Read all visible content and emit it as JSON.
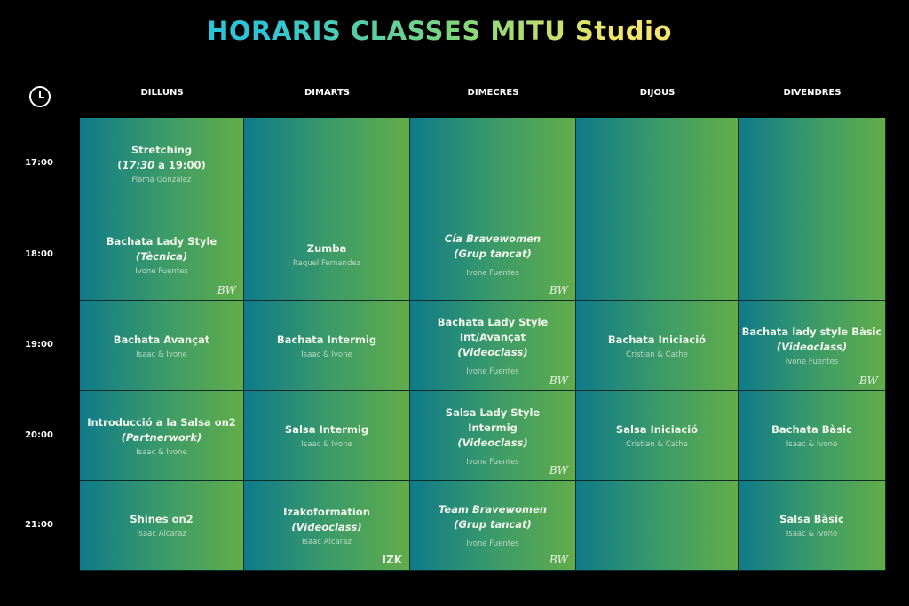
{
  "title": "HORARIS CLASSES MITU Studio",
  "days": [
    "DILLUNS",
    "DIMARTS",
    "DIMECRES",
    "DIJOUS",
    "DIVENDRES"
  ],
  "times": [
    "17:00",
    "18:00",
    "19:00",
    "20:00",
    "21:00"
  ],
  "colors": {
    "cell_start": "#0f7a8a",
    "cell_end": "#62ad4a",
    "background": "#000000"
  },
  "cells": [
    [
      {
        "lines": [
          [
            {
              "t": "Stretching"
            }
          ],
          [
            {
              "t": "("
            },
            {
              "t": "17:30",
              "i": true
            },
            {
              "t": " a 19:00)"
            }
          ]
        ],
        "teacher": "Fiama Gonzalez",
        "badge": ""
      },
      {
        "lines": [
          [
            {
              "t": "Bachata Lady Style"
            }
          ],
          [
            {
              "t": "(Tècnica)",
              "i": true
            }
          ]
        ],
        "teacher": "Ivone Fuentes",
        "badge": "BW"
      },
      {
        "lines": [
          [
            {
              "t": "Bachata Avançat"
            }
          ]
        ],
        "teacher": "Isaac & Ivone",
        "badge": ""
      },
      {
        "lines": [
          [
            {
              "t": "Introducció a la Salsa on2"
            }
          ],
          [
            {
              "t": "(Partnerwork)",
              "i": true
            }
          ]
        ],
        "teacher": "Isaac & Ivone",
        "badge": ""
      },
      {
        "lines": [
          [
            {
              "t": "Shines on2"
            }
          ]
        ],
        "teacher": "Isaac Alcaraz",
        "badge": ""
      }
    ],
    [
      {
        "lines": [],
        "teacher": "",
        "badge": ""
      },
      {
        "lines": [
          [
            {
              "t": "Zumba"
            }
          ]
        ],
        "teacher": "Raquel Fernandez",
        "badge": ""
      },
      {
        "lines": [
          [
            {
              "t": "Bachata Intermig"
            }
          ]
        ],
        "teacher": "Isaac & Ivone",
        "badge": ""
      },
      {
        "lines": [
          [
            {
              "t": "Salsa Intermig"
            }
          ]
        ],
        "teacher": "Isaac & Ivone",
        "badge": ""
      },
      {
        "lines": [
          [
            {
              "t": "Izakoformation"
            }
          ],
          [
            {
              "t": "(Videoclass)",
              "i": true
            }
          ]
        ],
        "teacher": "Isaac Alcaraz",
        "badge": "IZK"
      }
    ],
    [
      {
        "lines": [],
        "teacher": "",
        "badge": ""
      },
      {
        "lines": [
          [
            {
              "t": "Cía Bravewomen",
              "i": true
            }
          ],
          [
            {
              "t": "(Grup tancat)",
              "i": true
            }
          ]
        ],
        "teacher": "Ivone Fuentes",
        "badge": "BW"
      },
      {
        "lines": [
          [
            {
              "t": "Bachata Lady Style"
            }
          ],
          [
            {
              "t": "Int/Avançat"
            }
          ],
          [
            {
              "t": "(Videoclass)",
              "i": true
            }
          ]
        ],
        "teacher": "Ivone Fuentes",
        "badge": "BW"
      },
      {
        "lines": [
          [
            {
              "t": "Salsa Lady Style"
            }
          ],
          [
            {
              "t": "Intermig"
            }
          ],
          [
            {
              "t": "(Videoclass)",
              "i": true
            }
          ]
        ],
        "teacher": "Ivone Fuentes",
        "badge": "BW"
      },
      {
        "lines": [
          [
            {
              "t": "Team Bravewomen",
              "i": true
            }
          ],
          [
            {
              "t": "(Grup tancat)",
              "i": true
            }
          ]
        ],
        "teacher": "Ivone Fuentes",
        "badge": "BW"
      }
    ],
    [
      {
        "lines": [],
        "teacher": "",
        "badge": ""
      },
      {
        "lines": [],
        "teacher": "",
        "badge": ""
      },
      {
        "lines": [
          [
            {
              "t": "Bachata Iniciació"
            }
          ]
        ],
        "teacher": "Cristian & Cathe",
        "badge": ""
      },
      {
        "lines": [
          [
            {
              "t": "Salsa Iniciació"
            }
          ]
        ],
        "teacher": "Cristian & Cathe",
        "badge": ""
      },
      {
        "lines": [],
        "teacher": "",
        "badge": ""
      }
    ],
    [
      {
        "lines": [],
        "teacher": "",
        "badge": ""
      },
      {
        "lines": [],
        "teacher": "",
        "badge": ""
      },
      {
        "lines": [
          [
            {
              "t": "Bachata lady style Bàsic"
            }
          ],
          [
            {
              "t": "(Videoclass)",
              "i": true
            }
          ]
        ],
        "teacher": "Ivone Fuentes",
        "badge": "BW"
      },
      {
        "lines": [
          [
            {
              "t": "Bachata Bàsic"
            }
          ]
        ],
        "teacher": "Isaac & Ivone",
        "badge": ""
      },
      {
        "lines": [
          [
            {
              "t": "Salsa Bàsic"
            }
          ]
        ],
        "teacher": "Isaac & Ivone",
        "badge": ""
      }
    ]
  ]
}
